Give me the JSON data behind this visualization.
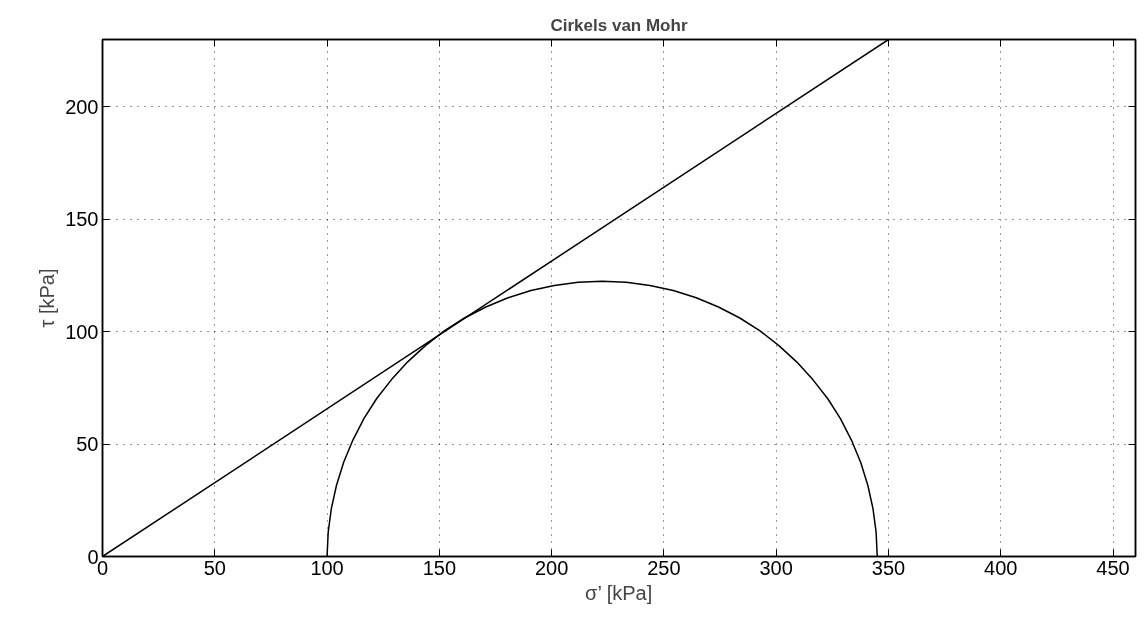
{
  "chart_data": {
    "type": "line",
    "title": "Cirkels van Mohr",
    "xlabel": "σ’ [kPa]",
    "ylabel": "τ [kPa]",
    "xlim": [
      0,
      460
    ],
    "ylim": [
      0,
      230
    ],
    "xticks": [
      0,
      50,
      100,
      150,
      200,
      250,
      300,
      350,
      400,
      450
    ],
    "yticks": [
      0,
      50,
      100,
      150,
      200
    ],
    "grid": true,
    "line_style": "solid",
    "marker": "none",
    "series": [
      {
        "color": "#000000",
        "x": [
          0,
          350
        ],
        "values": [
          0,
          230
        ]
      },
      {
        "color": "#000000",
        "x": [
          100,
          100.5,
          101.9,
          104.2,
          107.4,
          111.5,
          116.4,
          122.1,
          128.7,
          135.9,
          143.8,
          152.2,
          161.2,
          170.7,
          180.6,
          190.8,
          201.2,
          211.8,
          222.5,
          233.2,
          243.8,
          254.2,
          264.4,
          274.3,
          283.8,
          292.8,
          301.2,
          309.1,
          316.3,
          322.9,
          328.6,
          333.5,
          337.6,
          340.8,
          343.1,
          344.5,
          345
        ],
        "values": [
          0,
          10.7,
          21.3,
          31.7,
          41.9,
          51.8,
          61.3,
          70.3,
          78.7,
          86.6,
          93.8,
          100.4,
          106.1,
          111.0,
          115.1,
          118.3,
          120.6,
          122.0,
          122.5,
          122.0,
          120.6,
          118.3,
          115.1,
          111.0,
          106.1,
          100.4,
          93.8,
          86.6,
          78.7,
          70.3,
          61.3,
          51.8,
          41.9,
          31.7,
          21.3,
          10.7,
          0
        ]
      }
    ]
  }
}
